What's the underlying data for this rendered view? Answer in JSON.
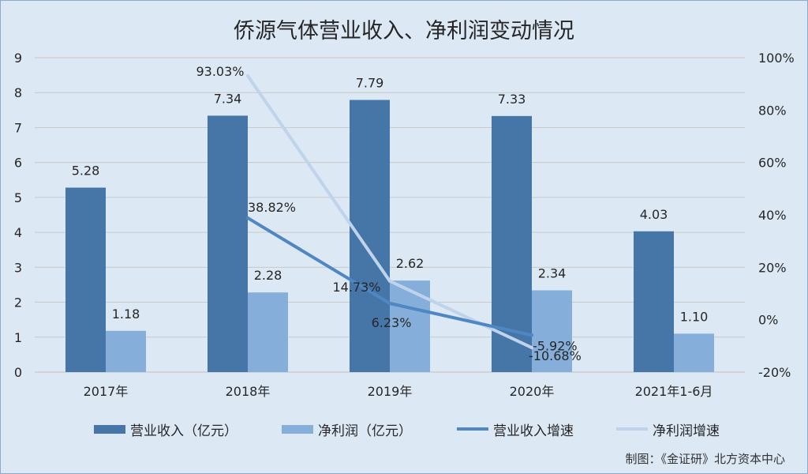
{
  "chart_data": {
    "type": "bar",
    "title": "侨源气体营业收入、净利润变动情况",
    "categories": [
      "2017年",
      "2018年",
      "2019年",
      "2020年",
      "2021年1-6月"
    ],
    "series": [
      {
        "name": "营业收入（亿元）",
        "kind": "bar",
        "axis": "left",
        "color": "#4675a8",
        "values": [
          5.28,
          7.34,
          7.79,
          7.33,
          4.03
        ],
        "labels": [
          "5.28",
          "7.34",
          "7.79",
          "7.33",
          "4.03"
        ]
      },
      {
        "name": "净利润（亿元）",
        "kind": "bar",
        "axis": "left",
        "color": "#86aedb",
        "values": [
          1.18,
          2.28,
          2.62,
          2.34,
          1.1
        ],
        "labels": [
          "1.18",
          "2.28",
          "2.62",
          "2.34",
          "1.10"
        ]
      },
      {
        "name": "营业收入增速",
        "kind": "line",
        "axis": "right",
        "color": "#4f87c3",
        "values": [
          null,
          38.82,
          6.23,
          -5.92,
          null
        ],
        "labels": [
          null,
          "38.82%",
          "6.23%",
          "-5.92%",
          null
        ]
      },
      {
        "name": "净利润增速",
        "kind": "line",
        "axis": "right",
        "color": "#bfd3eb",
        "values": [
          null,
          93.03,
          14.73,
          -10.68,
          null
        ],
        "labels": [
          null,
          "93.03%",
          "14.73%",
          "-10.68%",
          null
        ]
      }
    ],
    "y_left": {
      "min": 0,
      "max": 9,
      "ticks": [
        "0",
        "1",
        "2",
        "3",
        "4",
        "5",
        "6",
        "7",
        "8",
        "9"
      ]
    },
    "y_right": {
      "min": -20,
      "max": 100,
      "ticks": [
        "-20%",
        "0%",
        "20%",
        "40%",
        "60%",
        "80%",
        "100%"
      ]
    },
    "grid": true,
    "legend_position": "bottom"
  },
  "source_note": "制图：《金证研》北方资本中心"
}
